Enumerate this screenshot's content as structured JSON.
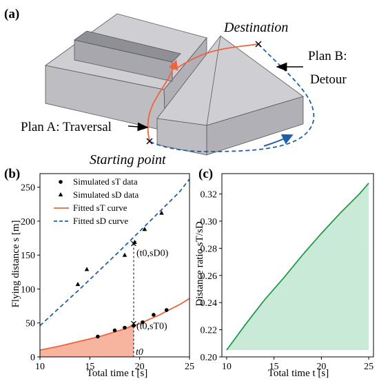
{
  "panel_a": {
    "label": "(a)",
    "destination_label": "Destination",
    "start_label": "Starting point",
    "plan_a_label": "Plan A: Traversal",
    "plan_b_line1": "Plan B:",
    "plan_b_line2": "Detour",
    "colors": {
      "plan_a": "#f0643c",
      "plan_b": "#1f5fa8",
      "building": "#c8c8cc"
    }
  },
  "chart_data": [
    {
      "panel_label": "(b)",
      "type": "line",
      "xlabel": "Total time t [s]",
      "ylabel": "Flying distance s [m]",
      "xlim": [
        10,
        25
      ],
      "ylim": [
        0,
        270
      ],
      "xticks": [
        10,
        15,
        20,
        25
      ],
      "yticks": [
        0,
        50,
        100,
        150,
        200,
        250
      ],
      "legend_position": "top-left",
      "series": [
        {
          "name": "Simulated sT data",
          "kind": "scatter",
          "marker": "circle",
          "x": [
            15.8,
            17.5,
            18.5,
            19.4,
            20.3,
            21.4,
            22.7
          ],
          "y": [
            30,
            39,
            43,
            46,
            51,
            62,
            69
          ]
        },
        {
          "name": "Simulated sD data",
          "kind": "scatter",
          "marker": "triangle",
          "x": [
            13.8,
            14.7,
            18.5,
            19.5,
            20.5,
            22.2
          ],
          "y": [
            107,
            129,
            150,
            169,
            188,
            212
          ]
        },
        {
          "name": "Fitted sT curve",
          "kind": "line",
          "color": "#f0643c",
          "style": "solid",
          "fill": "#f7b5a0",
          "x": [
            10,
            12,
            14,
            16,
            18,
            20,
            22,
            24,
            25
          ],
          "y": [
            10,
            16,
            23,
            30,
            39,
            49,
            62,
            77,
            86
          ]
        },
        {
          "name": "Fitted sD curve",
          "kind": "line",
          "color": "#1f5fa8",
          "style": "dashed",
          "x": [
            10,
            12,
            14,
            16,
            18,
            20,
            22,
            24,
            25
          ],
          "y": [
            46,
            73,
            100,
            128,
            156,
            185,
            214,
            243,
            262
          ]
        }
      ],
      "annotations": {
        "t0": 19.4,
        "sT0": 49,
        "sD0": 167,
        "t0_label": "t0",
        "sD0_label": "(t0,sD0)",
        "sT0_label": "(t0,sT0)"
      }
    },
    {
      "panel_label": "(c)",
      "type": "area",
      "xlabel": "Total time t [s]",
      "ylabel": "Distance ratio sT/sD",
      "xlim": [
        9.5,
        25.5
      ],
      "ylim": [
        0.2,
        0.335
      ],
      "xticks": [
        10,
        15,
        20,
        25
      ],
      "yticks": [
        0.2,
        0.22,
        0.24,
        0.26,
        0.28,
        0.3,
        0.32
      ],
      "fill_baseline": 0.205,
      "series": [
        {
          "name": "",
          "color": "#1e9a4a",
          "fill": "#c8ead6",
          "x": [
            10,
            12,
            14,
            16,
            18,
            20,
            22,
            24,
            25
          ],
          "y": [
            0.205,
            0.224,
            0.242,
            0.258,
            0.275,
            0.291,
            0.306,
            0.32,
            0.328
          ]
        }
      ]
    }
  ]
}
